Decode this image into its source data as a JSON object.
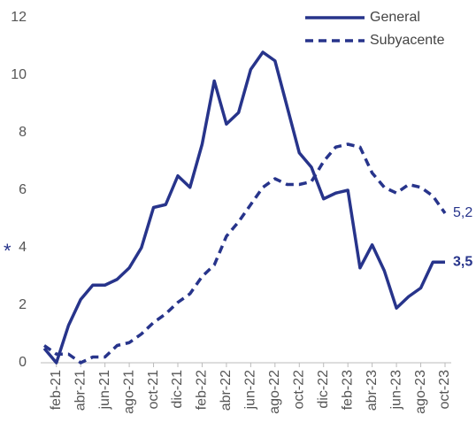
{
  "chart_data": {
    "type": "line",
    "categories": [
      null,
      "feb-21",
      null,
      "abr-21",
      null,
      "jun-21",
      null,
      "ago-21",
      null,
      "oct-21",
      null,
      "dic-21",
      null,
      "feb-22",
      null,
      "abr-22",
      null,
      "jun-22",
      null,
      "ago-22",
      null,
      "oct-22",
      null,
      "dic-22",
      null,
      "feb-23",
      null,
      "abr-23",
      null,
      "jun-23",
      null,
      "ago-23",
      null,
      "oct-23"
    ],
    "series": [
      {
        "name": "General",
        "color": "#27348b",
        "dash": false,
        "values": [
          0.5,
          0.0,
          1.3,
          2.2,
          2.7,
          2.7,
          2.9,
          3.3,
          4.0,
          5.4,
          5.5,
          6.5,
          6.1,
          7.6,
          9.8,
          8.3,
          8.7,
          10.2,
          10.8,
          10.5,
          8.9,
          7.3,
          6.8,
          5.7,
          5.9,
          6.0,
          3.3,
          4.1,
          3.2,
          1.9,
          2.3,
          2.6,
          3.5,
          3.5
        ],
        "value_labels": [
          null,
          null,
          null,
          null,
          null,
          null,
          null,
          null,
          null,
          null,
          null,
          null,
          null,
          null,
          null,
          null,
          null,
          null,
          null,
          null,
          null,
          null,
          null,
          null,
          null,
          null,
          null,
          null,
          null,
          null,
          null,
          null,
          null,
          "3,5"
        ]
      },
      {
        "name": "Subyacente",
        "color": "#27348b",
        "dash": true,
        "values": [
          0.6,
          0.3,
          0.3,
          0.0,
          0.2,
          0.2,
          0.6,
          0.7,
          1.0,
          1.4,
          1.7,
          2.1,
          2.4,
          3.0,
          3.4,
          4.4,
          4.9,
          5.5,
          6.1,
          6.4,
          6.2,
          6.2,
          6.3,
          7.0,
          7.5,
          7.6,
          7.5,
          6.6,
          6.1,
          5.9,
          6.2,
          6.1,
          5.8,
          5.2
        ],
        "value_labels": [
          null,
          null,
          null,
          null,
          null,
          null,
          null,
          null,
          null,
          null,
          null,
          null,
          null,
          null,
          null,
          null,
          null,
          null,
          null,
          null,
          null,
          null,
          null,
          null,
          null,
          null,
          null,
          null,
          null,
          null,
          null,
          null,
          null,
          "5,2"
        ]
      }
    ],
    "annotation": "*",
    "ylim": [
      0,
      12
    ],
    "yticks": [
      0,
      2,
      4,
      6,
      8,
      10,
      12
    ],
    "grid": false,
    "legend": "top-right"
  }
}
